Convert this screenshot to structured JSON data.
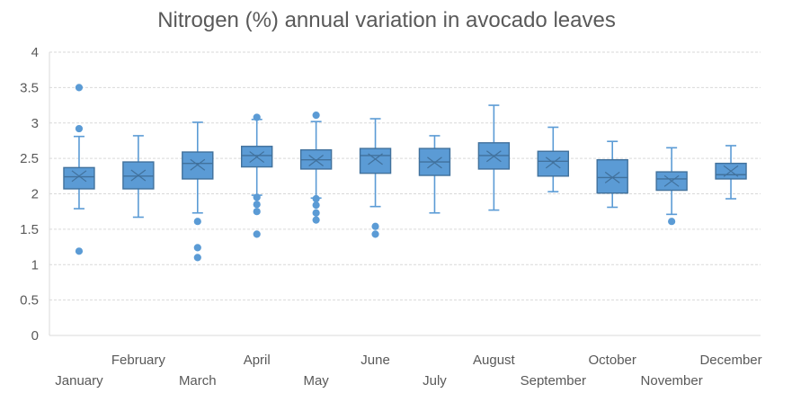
{
  "chart_data": {
    "type": "box",
    "title": "Nitrogen (%) annual variation in avocado leaves",
    "xlabel": "",
    "ylabel": "",
    "ylim": [
      0,
      4
    ],
    "yticks": [
      "0",
      "0.5",
      "1",
      "1.5",
      "2",
      "2.5",
      "3",
      "3.5",
      "4"
    ],
    "ytick_values": [
      0,
      0.5,
      1,
      1.5,
      2,
      2.5,
      3,
      3.5,
      4
    ],
    "grid": true,
    "legend": "none",
    "series_color": "#5b9bd5",
    "series_edge_color": "#41719c",
    "categories": [
      "January",
      "February",
      "March",
      "April",
      "May",
      "June",
      "July",
      "August",
      "September",
      "October",
      "November",
      "December"
    ],
    "boxes": [
      {
        "label": "January",
        "whisker_low": 1.79,
        "q1": 2.07,
        "median": 2.24,
        "q3": 2.37,
        "whisker_high": 2.81,
        "mean": 2.25,
        "outliers": [
          3.5,
          2.92,
          1.19
        ]
      },
      {
        "label": "February",
        "whisker_low": 1.67,
        "q1": 2.07,
        "median": 2.25,
        "q3": 2.45,
        "whisker_high": 2.82,
        "mean": 2.26,
        "outliers": []
      },
      {
        "label": "March",
        "whisker_low": 1.73,
        "q1": 2.21,
        "median": 2.43,
        "q3": 2.59,
        "whisker_high": 3.01,
        "mean": 2.41,
        "outliers": [
          1.61,
          1.24,
          1.1
        ]
      },
      {
        "label": "April",
        "whisker_low": 1.98,
        "q1": 2.38,
        "median": 2.54,
        "q3": 2.67,
        "whisker_high": 3.05,
        "mean": 2.52,
        "outliers": [
          3.08,
          1.95,
          1.85,
          1.75,
          1.43
        ]
      },
      {
        "label": "May",
        "whisker_low": 1.94,
        "q1": 2.35,
        "median": 2.48,
        "q3": 2.62,
        "whisker_high": 3.02,
        "mean": 2.47,
        "outliers": [
          3.11,
          1.93,
          1.84,
          1.73,
          1.63
        ]
      },
      {
        "label": "June",
        "whisker_low": 1.82,
        "q1": 2.29,
        "median": 2.54,
        "q3": 2.64,
        "whisker_high": 3.06,
        "mean": 2.49,
        "outliers": [
          1.54,
          1.43
        ]
      },
      {
        "label": "July",
        "whisker_low": 1.73,
        "q1": 2.26,
        "median": 2.45,
        "q3": 2.64,
        "whisker_high": 2.82,
        "mean": 2.44,
        "outliers": []
      },
      {
        "label": "August",
        "whisker_low": 1.77,
        "q1": 2.35,
        "median": 2.54,
        "q3": 2.72,
        "whisker_high": 3.25,
        "mean": 2.53,
        "outliers": []
      },
      {
        "label": "September",
        "whisker_low": 2.03,
        "q1": 2.25,
        "median": 2.46,
        "q3": 2.6,
        "whisker_high": 2.94,
        "mean": 2.44,
        "outliers": []
      },
      {
        "label": "October",
        "whisker_low": 1.81,
        "q1": 2.01,
        "median": 2.23,
        "q3": 2.48,
        "whisker_high": 2.74,
        "mean": 2.23,
        "outliers": []
      },
      {
        "label": "November",
        "whisker_low": 1.71,
        "q1": 2.05,
        "median": 2.21,
        "q3": 2.31,
        "whisker_high": 2.65,
        "mean": 2.18,
        "outliers": [
          1.61
        ]
      },
      {
        "label": "December",
        "whisker_low": 1.93,
        "q1": 2.21,
        "median": 2.27,
        "q3": 2.43,
        "whisker_high": 2.68,
        "mean": 2.32,
        "outliers": []
      }
    ]
  }
}
